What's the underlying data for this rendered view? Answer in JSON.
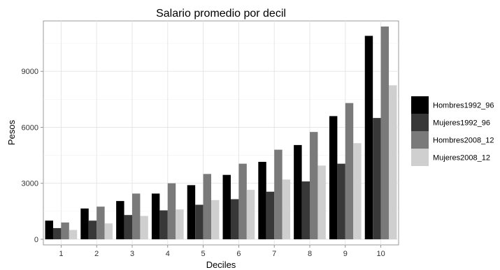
{
  "chart_data": {
    "type": "bar",
    "title": "Salario promedio por decil",
    "xlabel": "Deciles",
    "ylabel": "Pesos",
    "categories": [
      "1",
      "2",
      "3",
      "4",
      "5",
      "6",
      "7",
      "8",
      "9",
      "10"
    ],
    "y_ticks": [
      "0",
      "3000",
      "6000",
      "9000"
    ],
    "ylim": [
      -300,
      11700
    ],
    "grid": true,
    "legend_position": "right",
    "series": [
      {
        "name": "Hombres1992_96",
        "color": "#000000",
        "values": [
          1000,
          1650,
          2050,
          2450,
          2900,
          3450,
          4150,
          5050,
          6600,
          10900
        ]
      },
      {
        "name": "Mujeres1992_96",
        "color": "#383838",
        "values": [
          600,
          1000,
          1300,
          1550,
          1850,
          2150,
          2550,
          3100,
          4050,
          6500
        ]
      },
      {
        "name": "Hombres2008_12",
        "color": "#7a7a7a",
        "values": [
          900,
          1750,
          2450,
          3000,
          3500,
          4050,
          4800,
          5750,
          7300,
          11400
        ]
      },
      {
        "name": "Mujeres2008_12",
        "color": "#cfcfcf",
        "values": [
          500,
          850,
          1250,
          1600,
          2100,
          2650,
          3200,
          3950,
          5150,
          8250
        ]
      }
    ]
  }
}
